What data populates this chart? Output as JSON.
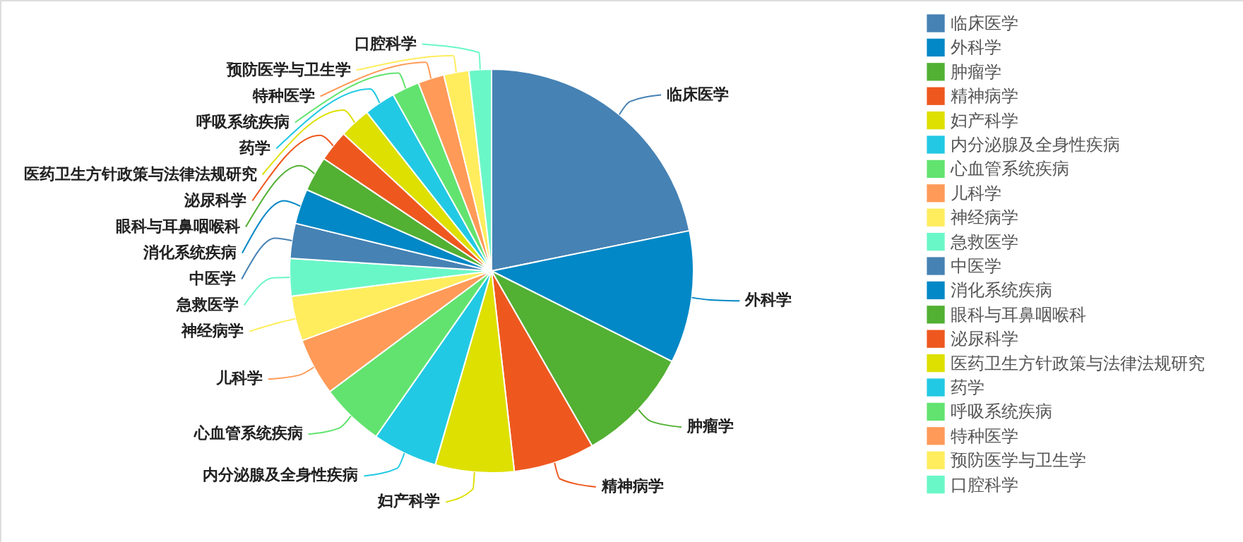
{
  "chart_data": {
    "type": "pie",
    "categories": [
      "临床医学",
      "外科学",
      "肿瘤学",
      "精神病学",
      "妇产科学",
      "内分泌腺及全身性疾病",
      "心血管系统疾病",
      "儿科学",
      "神经病学",
      "急救医学",
      "中医学",
      "消化系统疾病",
      "眼科与耳鼻咽喉科",
      "泌尿科学",
      "医药卫生方针政策与法律法规研究",
      "药学",
      "呼吸系统疾病",
      "特种医学",
      "预防医学与卫生学",
      "口腔科学"
    ],
    "values": [
      21.8,
      10.6,
      9.3,
      6.5,
      6.3,
      5.2,
      5.1,
      4.6,
      3.6,
      3.0,
      2.8,
      2.8,
      2.8,
      2.5,
      2.5,
      2.5,
      2.2,
      2.1,
      2.0,
      1.8
    ],
    "colors": [
      "#4682b4",
      "#0288c6",
      "#52b033",
      "#ee581f",
      "#dde000",
      "#22c9e4",
      "#62e36f",
      "#ff9a58",
      "#ffed5e",
      "#6af7c8",
      "#4682b4",
      "#0288c6",
      "#52b033",
      "#ee581f",
      "#dde000",
      "#22c9e4",
      "#62e36f",
      "#ff9a58",
      "#ffed5e",
      "#6af7c8"
    ],
    "legend": "right"
  }
}
